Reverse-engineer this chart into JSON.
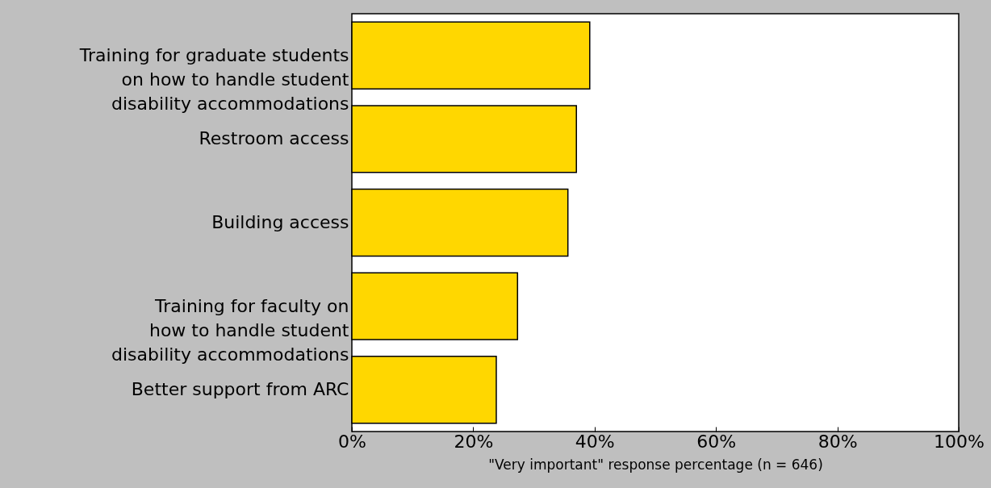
{
  "chart_data": {
    "type": "bar",
    "orientation": "horizontal",
    "categories": [
      "Training for graduate students\non how to handle student\ndisability accommodations",
      "Restroom access",
      "Building access",
      "Training for faculty on\nhow to handle student\ndisability accommodations",
      "Better support from ARC"
    ],
    "values": [
      39.2,
      37.0,
      35.6,
      27.3,
      23.8
    ],
    "color": "#ffd700",
    "xlabel": "\"Very important\" response percentage (n = 646)",
    "xlim": [
      0,
      100
    ],
    "xticks": [
      {
        "value": 0,
        "label": "0%"
      },
      {
        "value": 20,
        "label": "20%"
      },
      {
        "value": 40,
        "label": "40%"
      },
      {
        "value": 60,
        "label": "60%"
      },
      {
        "value": 80,
        "label": "80%"
      },
      {
        "value": 100,
        "label": "100%"
      }
    ],
    "grid": false
  }
}
